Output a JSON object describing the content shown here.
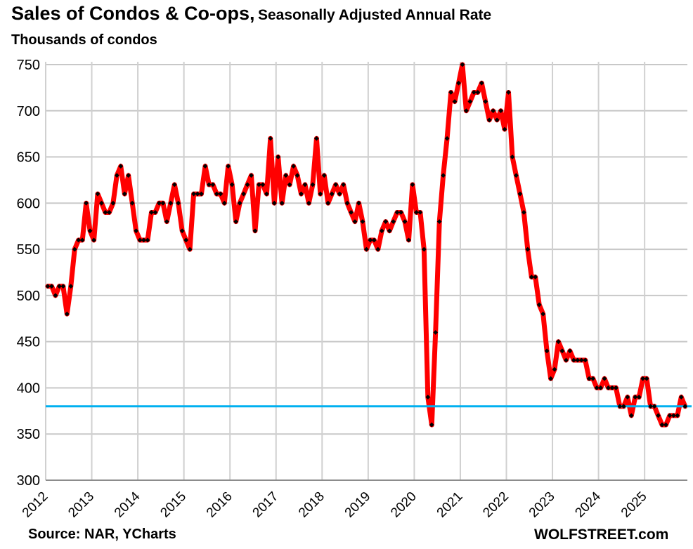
{
  "chart_data": {
    "type": "line",
    "title": "Sales of Condos  & Co-ops,",
    "title_suffix": "Seasonally Adjusted Annual Rate",
    "ylabel": "Thousands of condos",
    "xlabel": "",
    "ylim": [
      300,
      750
    ],
    "yticks": [
      300,
      350,
      400,
      450,
      500,
      550,
      600,
      650,
      700,
      750
    ],
    "xtick_labels": [
      "2012",
      "2013",
      "2014",
      "2015",
      "2016",
      "2017",
      "2018",
      "2019",
      "2020",
      "2021",
      "2022",
      "2023",
      "2024",
      "2025"
    ],
    "x_start": "2012-01",
    "x_frequency": "monthly",
    "grid": true,
    "series": [
      {
        "name": "Sales of Condos & Co-ops",
        "color": "#ff0000",
        "marker_color": "#000000",
        "values": [
          510,
          510,
          500,
          510,
          510,
          480,
          510,
          550,
          560,
          560,
          600,
          570,
          560,
          610,
          600,
          590,
          590,
          600,
          630,
          640,
          610,
          630,
          600,
          570,
          560,
          560,
          560,
          590,
          590,
          600,
          600,
          580,
          600,
          620,
          600,
          570,
          560,
          550,
          610,
          610,
          610,
          640,
          620,
          620,
          610,
          610,
          600,
          640,
          620,
          580,
          600,
          610,
          620,
          630,
          570,
          620,
          620,
          610,
          670,
          600,
          650,
          600,
          630,
          620,
          640,
          630,
          610,
          620,
          600,
          620,
          670,
          610,
          630,
          600,
          610,
          620,
          610,
          620,
          600,
          590,
          580,
          600,
          580,
          550,
          560,
          560,
          550,
          570,
          580,
          570,
          580,
          590,
          590,
          580,
          560,
          620,
          590,
          590,
          550,
          390,
          360,
          460,
          580,
          630,
          670,
          720,
          710,
          730,
          750,
          700,
          710,
          720,
          720,
          730,
          710,
          690,
          700,
          690,
          700,
          680,
          720,
          650,
          630,
          610,
          590,
          550,
          520,
          520,
          490,
          480,
          440,
          410,
          420,
          450,
          440,
          430,
          440,
          430,
          430,
          430,
          430,
          410,
          410,
          400,
          400,
          410,
          400,
          400,
          400,
          380,
          380,
          390,
          370,
          390,
          390,
          410,
          410,
          380,
          380,
          370,
          360,
          360,
          370,
          370,
          370,
          390,
          380
        ]
      }
    ],
    "reference_line": {
      "value": 380,
      "color": "#00b0f0"
    }
  },
  "footer": {
    "source": "Source: NAR, YCharts",
    "brand": "WOLFSTREET.com"
  }
}
